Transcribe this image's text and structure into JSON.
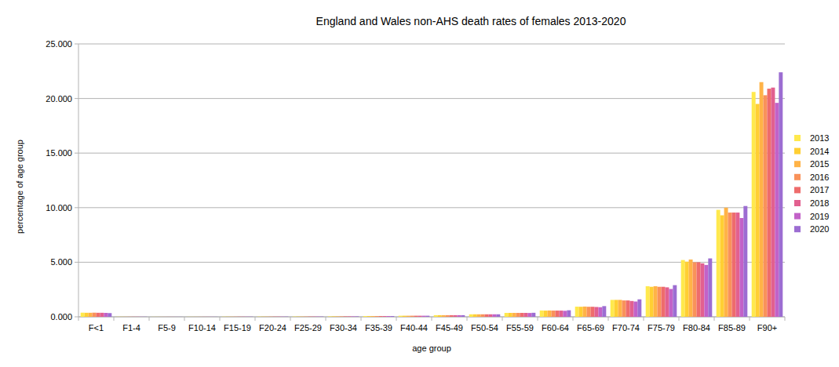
{
  "chart_data": {
    "type": "bar",
    "title": "England and Wales non-AHS death rates of females 2013-2020",
    "x_label": "age group",
    "y_label": "percentage of age group",
    "categories": [
      "F<1",
      "F1-4",
      "F5-9",
      "F10-14",
      "F15-19",
      "F20-24",
      "F25-29",
      "F30-34",
      "F35-39",
      "F40-44",
      "F45-49",
      "F50-54",
      "F55-59",
      "F60-64",
      "F65-69",
      "F70-74",
      "F75-79",
      "F80-84",
      "F85-89",
      "F90+"
    ],
    "series": [
      {
        "name": "2013",
        "color": "#ffe94d",
        "values": [
          0.38,
          0.015,
          0.008,
          0.01,
          0.02,
          0.025,
          0.03,
          0.045,
          0.07,
          0.1,
          0.15,
          0.23,
          0.36,
          0.58,
          0.93,
          1.55,
          2.8,
          5.2,
          9.8,
          20.6
        ]
      },
      {
        "name": "2014",
        "color": "#ffcf33",
        "values": [
          0.37,
          0.015,
          0.008,
          0.01,
          0.02,
          0.025,
          0.03,
          0.045,
          0.07,
          0.1,
          0.15,
          0.23,
          0.36,
          0.57,
          0.92,
          1.55,
          2.75,
          5.05,
          9.3,
          19.5
        ]
      },
      {
        "name": "2015",
        "color": "#ffb347",
        "values": [
          0.37,
          0.015,
          0.008,
          0.01,
          0.02,
          0.025,
          0.03,
          0.045,
          0.07,
          0.1,
          0.15,
          0.23,
          0.36,
          0.58,
          0.94,
          1.55,
          2.8,
          5.25,
          10.0,
          21.5
        ]
      },
      {
        "name": "2016",
        "color": "#f9925a",
        "values": [
          0.38,
          0.015,
          0.008,
          0.01,
          0.02,
          0.025,
          0.03,
          0.045,
          0.07,
          0.1,
          0.15,
          0.23,
          0.36,
          0.57,
          0.92,
          1.5,
          2.75,
          5.0,
          9.55,
          20.3
        ]
      },
      {
        "name": "2017",
        "color": "#ee6c6c",
        "values": [
          0.37,
          0.015,
          0.008,
          0.01,
          0.02,
          0.025,
          0.03,
          0.045,
          0.07,
          0.1,
          0.15,
          0.23,
          0.36,
          0.57,
          0.92,
          1.5,
          2.75,
          5.0,
          9.55,
          20.9
        ]
      },
      {
        "name": "2018",
        "color": "#e2608f",
        "values": [
          0.37,
          0.015,
          0.008,
          0.01,
          0.02,
          0.025,
          0.03,
          0.045,
          0.07,
          0.1,
          0.15,
          0.23,
          0.36,
          0.57,
          0.9,
          1.45,
          2.7,
          4.9,
          9.55,
          21.0
        ]
      },
      {
        "name": "2019",
        "color": "#c262c8",
        "values": [
          0.36,
          0.015,
          0.008,
          0.01,
          0.02,
          0.025,
          0.03,
          0.045,
          0.07,
          0.1,
          0.15,
          0.23,
          0.35,
          0.55,
          0.88,
          1.4,
          2.55,
          4.75,
          9.05,
          19.6
        ]
      },
      {
        "name": "2020",
        "color": "#9c6dd2",
        "values": [
          0.34,
          0.015,
          0.008,
          0.01,
          0.02,
          0.025,
          0.03,
          0.045,
          0.07,
          0.1,
          0.15,
          0.23,
          0.37,
          0.6,
          0.98,
          1.6,
          2.9,
          5.35,
          10.15,
          22.4
        ]
      }
    ],
    "ylim": [
      0,
      25
    ],
    "yticks": [
      {
        "value": 0,
        "label": "0.000"
      },
      {
        "value": 5,
        "label": "5.000"
      },
      {
        "value": 10,
        "label": "10.000"
      },
      {
        "value": 15,
        "label": "15.000"
      },
      {
        "value": 20,
        "label": "20.000"
      },
      {
        "value": 25,
        "label": "25.000"
      }
    ],
    "grid": true,
    "legend": "right"
  }
}
